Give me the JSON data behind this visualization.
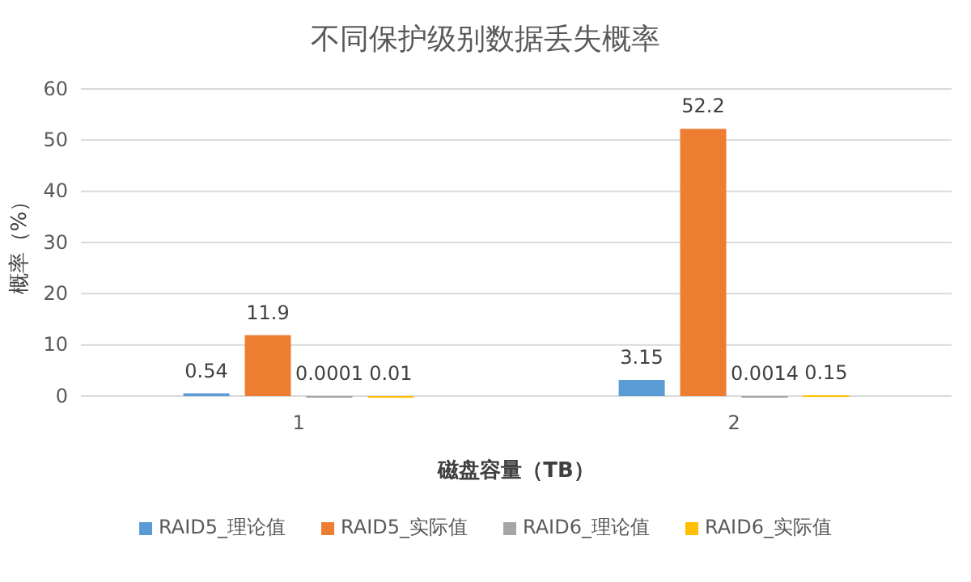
{
  "chart_data": {
    "type": "bar",
    "title": "不同保护级别数据丢失概率",
    "xlabel": "磁盘容量（TB）",
    "ylabel": "概率（%）",
    "categories": [
      "1",
      "2"
    ],
    "series": [
      {
        "name": "RAID5_理论值",
        "color": "#5b9bd5",
        "values": [
          0.54,
          3.15
        ]
      },
      {
        "name": "RAID5_实际值",
        "color": "#ed7d31",
        "values": [
          11.9,
          52.2
        ]
      },
      {
        "name": "RAID6_理论值",
        "color": "#a5a5a5",
        "values": [
          0.0001,
          0.0014
        ]
      },
      {
        "name": "RAID6_实际值",
        "color": "#ffc000",
        "values": [
          0.01,
          0.15
        ]
      }
    ],
    "ylim": [
      0,
      60
    ],
    "yticks": [
      0,
      10,
      20,
      30,
      40,
      50,
      60
    ],
    "grid": "y",
    "legend": "bottom",
    "data_labels": true
  }
}
